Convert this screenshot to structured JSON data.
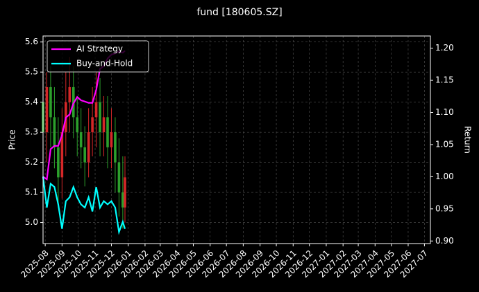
{
  "chart_data": {
    "type": "candlestick",
    "title": "fund [180605.SZ]",
    "ylabel": "Price",
    "y2label": "Return",
    "xlim": [
      "2025-07-28",
      "2027-07-12"
    ],
    "xticks": [
      "2025-08",
      "2025-09",
      "2025-10",
      "2025-11",
      "2025-12",
      "2026-01",
      "2026-02",
      "2026-03",
      "2026-04",
      "2026-05",
      "2026-06",
      "2026-07",
      "2026-08",
      "2026-09",
      "2026-10",
      "2026-11",
      "2026-12",
      "2027-01",
      "2027-02",
      "2027-03",
      "2027-04",
      "2027-05",
      "2027-06",
      "2027-07"
    ],
    "ylim": [
      4.93,
      5.62
    ],
    "yticks": [
      {
        "value": 5.0,
        "label": "5.0"
      },
      5.1,
      5.2,
      5.3,
      5.4,
      5.5,
      5.6
    ],
    "y2lim": [
      0.896,
      1.219
    ],
    "y2ticks": [
      {
        "value": 0.9,
        "label": "0.90"
      },
      0.95,
      {
        "value": 1.0,
        "label": "1.00"
      },
      1.05,
      {
        "value": 1.1,
        "label": "1.10"
      },
      1.15,
      {
        "value": 1.2,
        "label": "1.20"
      }
    ],
    "grid": true,
    "legend": "upper left",
    "x": [
      "2025-07-28",
      "2025-08-04",
      "2025-08-11",
      "2025-08-18",
      "2025-08-25",
      "2025-09-01",
      "2025-09-08",
      "2025-09-15",
      "2025-09-22",
      "2025-09-29",
      "2025-10-06",
      "2025-10-13",
      "2025-10-20",
      "2025-10-27",
      "2025-11-03",
      "2025-11-10",
      "2025-11-17",
      "2025-11-24",
      "2025-12-01",
      "2025-12-08",
      "2025-12-15",
      "2025-12-22",
      "2025-12-26"
    ],
    "candles": {
      "up_color": "#d62728",
      "down_color": "#2ca02c",
      "open": [
        5.4,
        5.3,
        5.45,
        5.35,
        5.25,
        5.15,
        5.3,
        5.4,
        5.45,
        5.35,
        5.3,
        5.25,
        5.2,
        5.3,
        5.35,
        5.4,
        5.3,
        5.35,
        5.25,
        5.3,
        5.2,
        5.1,
        5.05
      ],
      "high": [
        5.58,
        5.5,
        5.52,
        5.45,
        5.35,
        5.38,
        5.5,
        5.55,
        5.52,
        5.42,
        5.38,
        5.32,
        5.38,
        5.45,
        5.5,
        5.48,
        5.42,
        5.42,
        5.38,
        5.35,
        5.28,
        5.22,
        5.22
      ],
      "low": [
        5.15,
        5.2,
        5.25,
        5.18,
        5.05,
        5.08,
        5.22,
        5.3,
        5.28,
        5.22,
        5.18,
        5.12,
        5.15,
        5.22,
        5.25,
        5.22,
        5.22,
        5.18,
        5.18,
        5.1,
        5.02,
        4.98,
        5.0
      ],
      "close": [
        5.3,
        5.45,
        5.35,
        5.25,
        5.15,
        5.3,
        5.4,
        5.45,
        5.35,
        5.3,
        5.25,
        5.2,
        5.3,
        5.35,
        5.4,
        5.3,
        5.35,
        5.25,
        5.3,
        5.2,
        5.1,
        5.05,
        5.15
      ]
    },
    "series": [
      {
        "name": "AI Strategy",
        "color": "#ff00ff",
        "axis": "y2",
        "values": [
          1.0,
          0.996,
          1.043,
          1.048,
          1.048,
          1.065,
          1.092,
          1.097,
          1.114,
          1.124,
          1.119,
          1.117,
          1.115,
          1.115,
          1.135,
          1.168,
          1.172,
          1.184,
          1.19,
          1.192,
          1.195,
          1.193,
          1.196
        ]
      },
      {
        "name": "Buy-and-Hold",
        "color": "#00ffff",
        "axis": "y2",
        "values": [
          1.0,
          0.952,
          0.989,
          0.984,
          0.957,
          0.919,
          0.962,
          0.968,
          0.984,
          0.968,
          0.957,
          0.952,
          0.968,
          0.946,
          0.984,
          0.952,
          0.962,
          0.957,
          0.962,
          0.952,
          0.914,
          0.93,
          0.919
        ]
      }
    ]
  }
}
